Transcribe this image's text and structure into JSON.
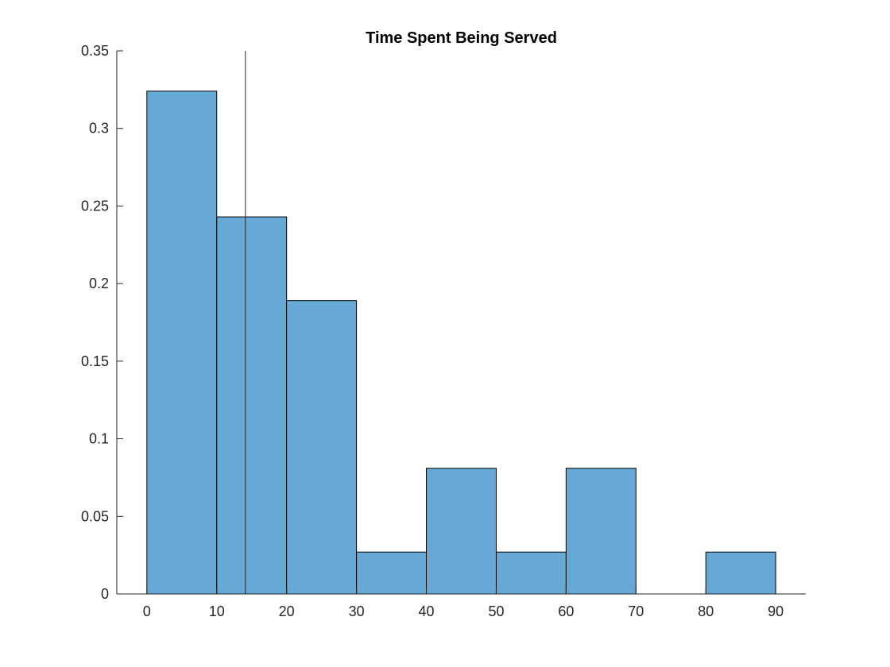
{
  "chart_data": {
    "type": "bar",
    "title": "Time Spent Being Served",
    "xlabel": "",
    "ylabel": "",
    "bin_edges": [
      0,
      10,
      20,
      30,
      40,
      50,
      60,
      70,
      80,
      90
    ],
    "values": [
      0.324,
      0.243,
      0.189,
      0.027,
      0.081,
      0.027,
      0.081,
      0,
      0.027
    ],
    "bar_color": "#66a9d7",
    "edge_color": "#000000",
    "xlim": [
      -4.3,
      94.3
    ],
    "ylim": [
      0,
      0.35
    ],
    "x_ticks": [
      0,
      10,
      20,
      30,
      40,
      50,
      60,
      70,
      80,
      90
    ],
    "x_tick_labels": [
      "0",
      "10",
      "20",
      "30",
      "40",
      "50",
      "60",
      "70",
      "80",
      "90"
    ],
    "y_ticks": [
      0,
      0.05,
      0.1,
      0.15,
      0.2,
      0.25,
      0.3,
      0.35
    ],
    "y_tick_labels": [
      "0",
      "0.05",
      "0.1",
      "0.15",
      "0.2",
      "0.25",
      "0.3",
      "0.35"
    ],
    "reference_line_x": 14.1,
    "grid": false,
    "legend": false
  }
}
